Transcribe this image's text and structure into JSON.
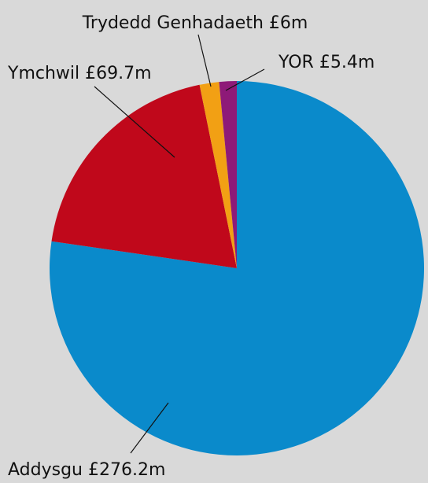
{
  "chart_data": {
    "type": "pie",
    "title": "",
    "start_angle_deg": 0,
    "direction": "clockwise",
    "slices": [
      {
        "name": "Addysgu",
        "label": "Addysgu £276.2m",
        "value": 276.2,
        "color": "#0a8acb"
      },
      {
        "name": "Ymchwil",
        "label": "Ymchwil £69.7m",
        "value": 69.7,
        "color": "#c0081b"
      },
      {
        "name": "Trydedd Genhadaeth",
        "label": "Trydedd Genhadaeth £6m",
        "value": 6,
        "color": "#f2a014"
      },
      {
        "name": "YOR",
        "label": "YOR £5.4m",
        "value": 5.4,
        "color": "#8e1a78"
      }
    ]
  },
  "background_color": "#d9d9d9"
}
